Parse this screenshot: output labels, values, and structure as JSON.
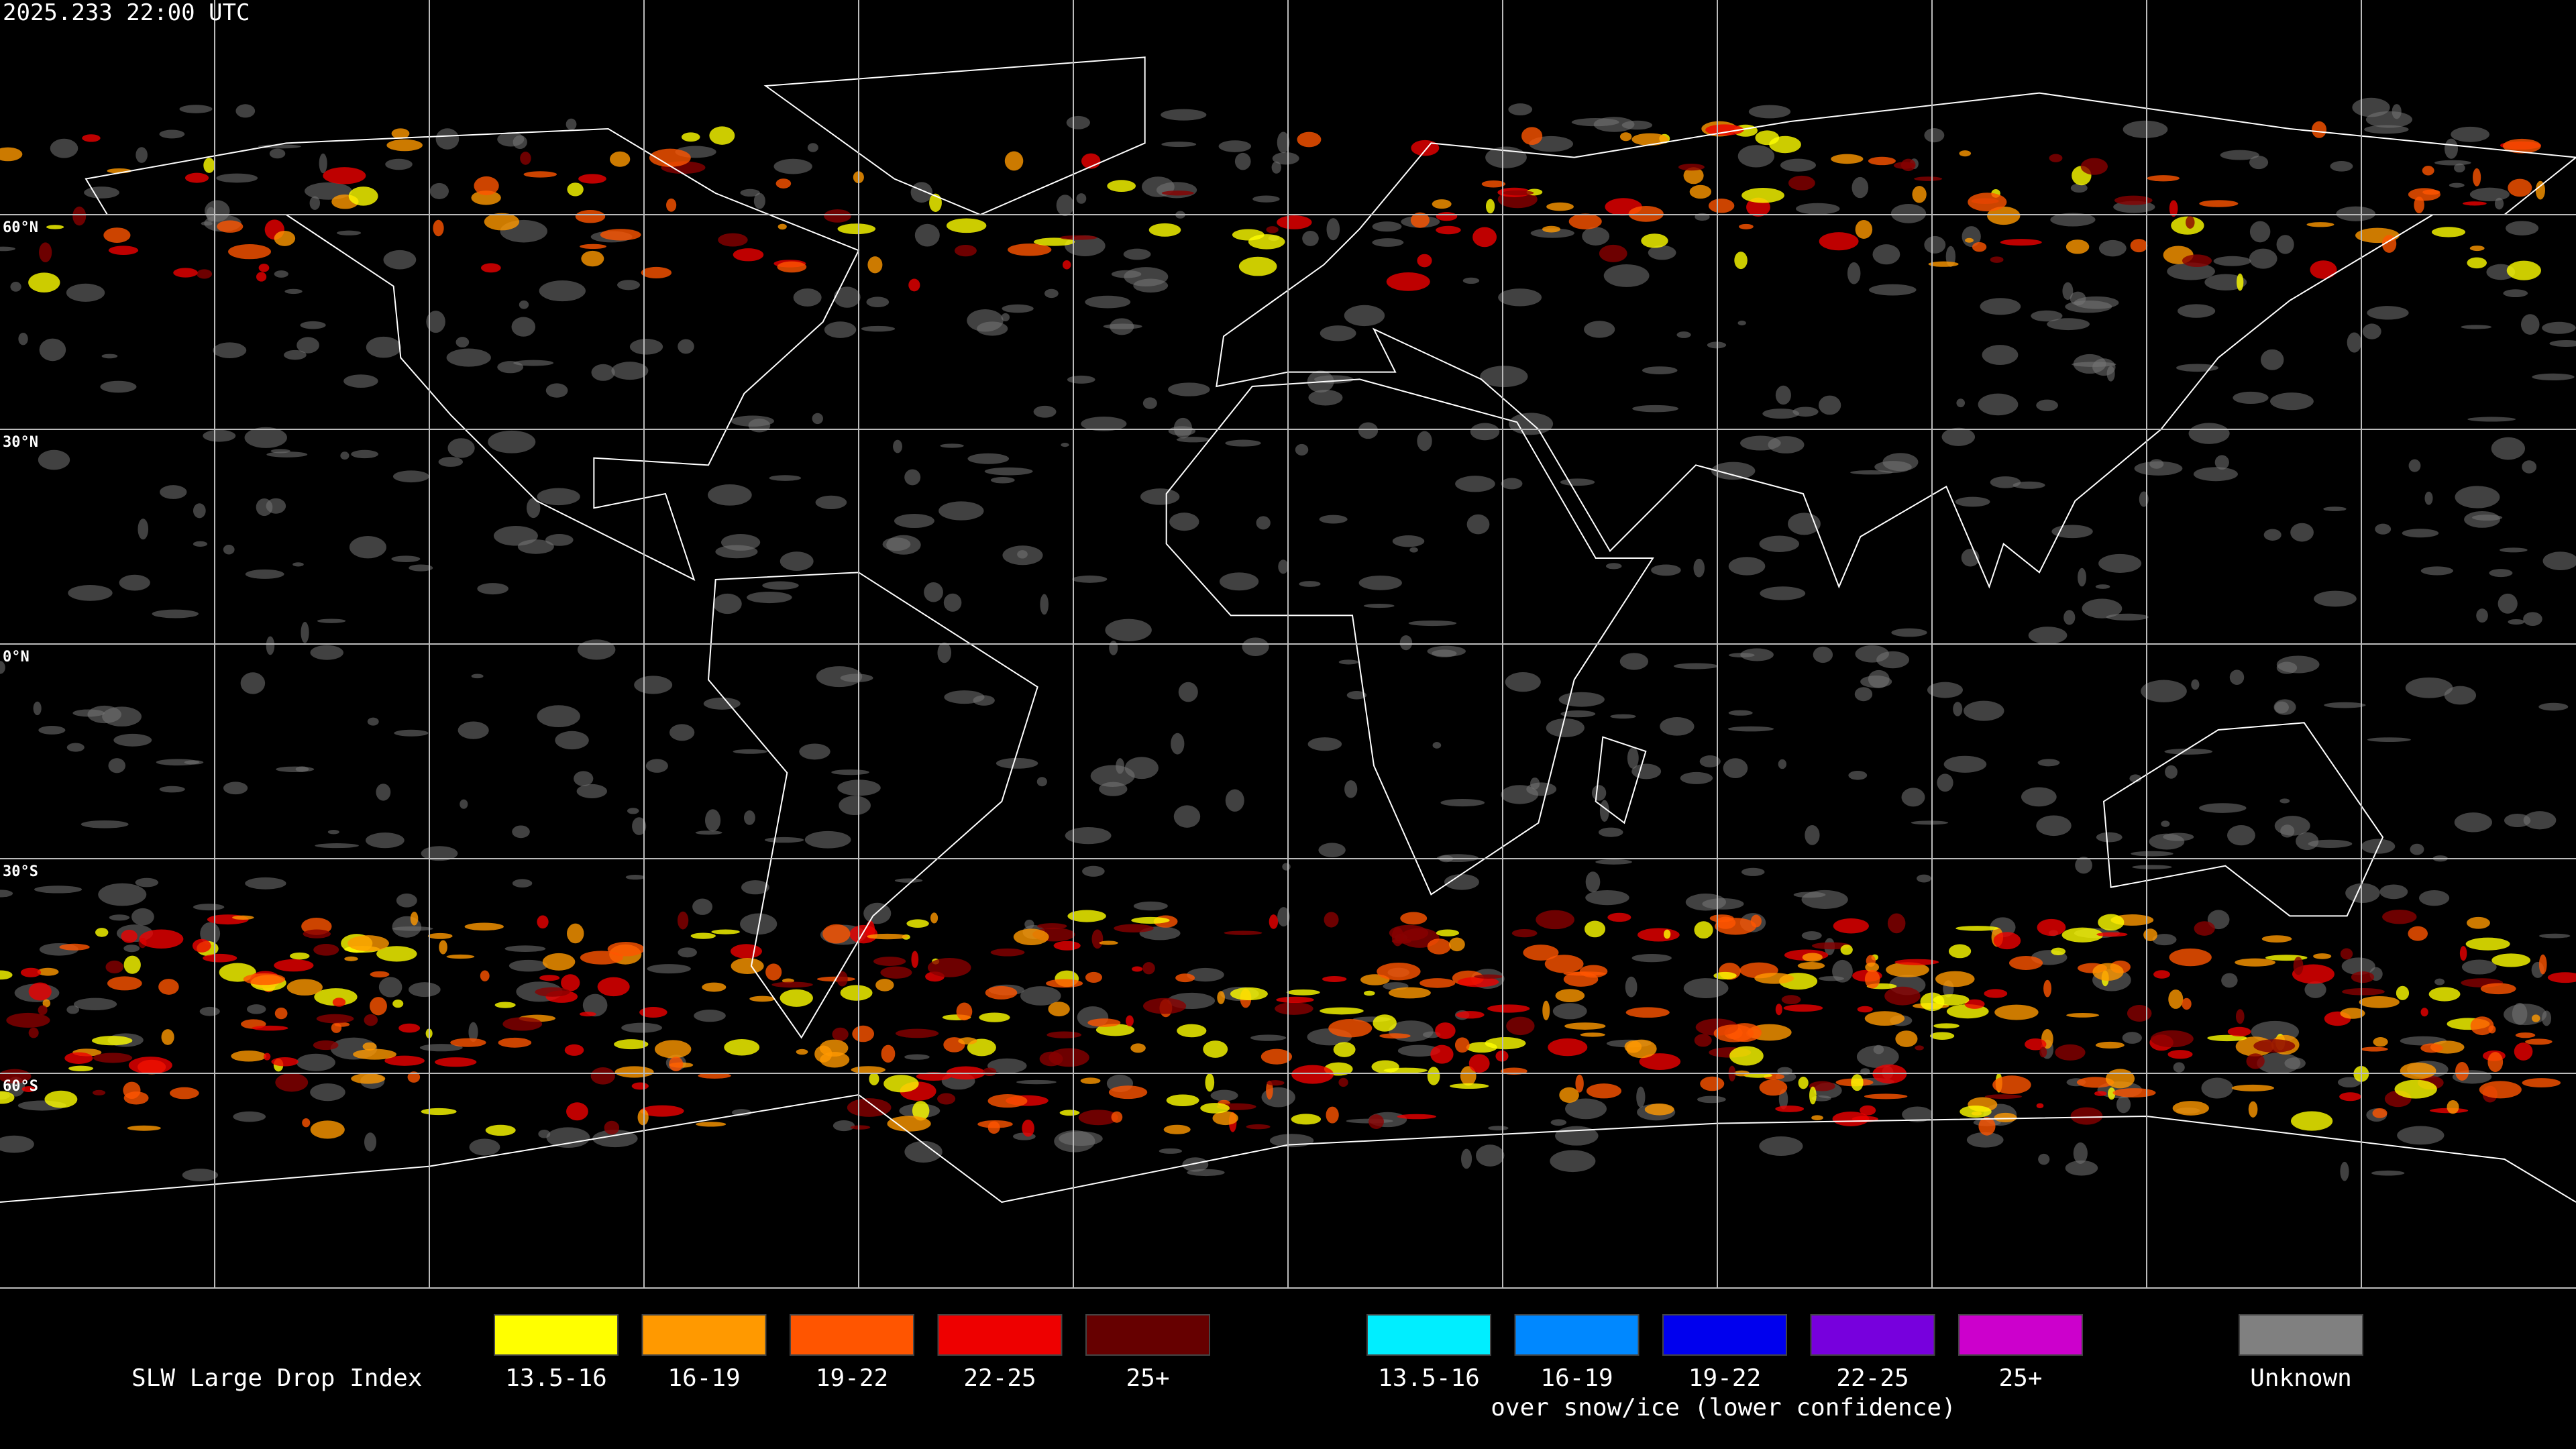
{
  "header": {
    "title": "2025.233 22:00 UTC"
  },
  "map": {
    "latitude_labels": [
      "60°N",
      "30°N",
      "0°N",
      "30°S",
      "60°S"
    ]
  },
  "legend": {
    "title": "SLW Large Drop Index",
    "main": [
      {
        "label": "13.5-16",
        "color": "#ffff00"
      },
      {
        "label": "16-19",
        "color": "#ff9900"
      },
      {
        "label": "19-22",
        "color": "#ff5500"
      },
      {
        "label": "22-25",
        "color": "#ee0000"
      },
      {
        "label": "25+",
        "color": "#660000"
      }
    ],
    "snow_ice": [
      {
        "label": "13.5-16",
        "color": "#00eeff"
      },
      {
        "label": "16-19",
        "color": "#0088ff"
      },
      {
        "label": "19-22",
        "color": "#0000ee"
      },
      {
        "label": "22-25",
        "color": "#7700dd"
      },
      {
        "label": "25+",
        "color": "#cc00cc"
      }
    ],
    "snow_ice_caption": "over snow/ice (lower confidence)",
    "unknown": {
      "label": "Unknown",
      "color": "#808080"
    }
  }
}
